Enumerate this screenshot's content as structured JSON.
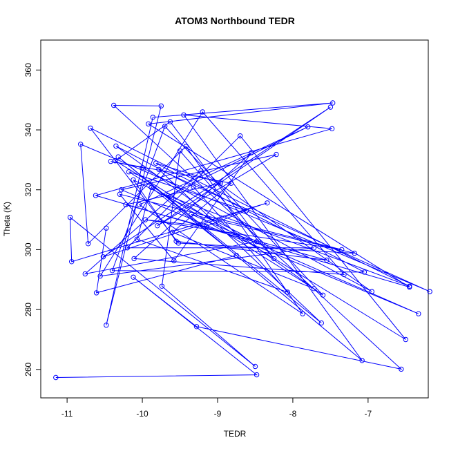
{
  "chart_data": {
    "type": "line",
    "title": "ATOM3 Northbound TEDR",
    "xlabel": "TEDR",
    "ylabel": "Theta (K)",
    "xlim": [
      -11.35,
      -6.2
    ],
    "ylim": [
      250.5,
      370
    ],
    "xticks": [
      -11,
      -10,
      -9,
      -8,
      -7
    ],
    "yticks": [
      260,
      280,
      300,
      320,
      340,
      360
    ],
    "grid": false,
    "series": [
      {
        "color": "#0000ff",
        "marker": "open-circle",
        "points": [
          [
            -11.15,
            257.3
          ],
          [
            -8.48,
            258.2
          ],
          [
            -10.12,
            290.8
          ],
          [
            -9.28,
            274.3
          ],
          [
            -6.56,
            260.1
          ],
          [
            -10.38,
            348.2
          ],
          [
            -9.75,
            348.0
          ],
          [
            -10.48,
            274.8
          ],
          [
            -9.86,
            344.2
          ],
          [
            -7.47,
            349.0
          ],
          [
            -9.92,
            342.0
          ],
          [
            -6.45,
            287.5
          ],
          [
            -10.62,
            318.1
          ],
          [
            -7.48,
            340.4
          ],
          [
            -9.45,
            345.0
          ],
          [
            -7.08,
            263.0
          ],
          [
            -10.32,
            331.0
          ],
          [
            -7.62,
            275.5
          ],
          [
            -9.78,
            326.8
          ],
          [
            -6.18,
            286.0
          ],
          [
            -10.82,
            335.2
          ],
          [
            -10.72,
            302.0
          ],
          [
            -9.42,
            334.5
          ],
          [
            -7.87,
            278.6
          ],
          [
            -10.04,
            315.0
          ],
          [
            -7.8,
            341.0
          ],
          [
            -9.66,
            318.0
          ],
          [
            -6.45,
            287.8
          ],
          [
            -10.69,
            340.6
          ],
          [
            -9.52,
            302.2
          ],
          [
            -7.18,
            298.8
          ],
          [
            -9.35,
            311.8
          ],
          [
            -6.33,
            278.6
          ],
          [
            -10.28,
            320.0
          ],
          [
            -8.22,
            331.8
          ],
          [
            -9.8,
            308.0
          ],
          [
            -7.5,
            347.6
          ],
          [
            -10.52,
            297.6
          ],
          [
            -8.34,
            315.6
          ],
          [
            -10.94,
            296.0
          ],
          [
            -10.96,
            310.8
          ],
          [
            -8.5,
            261.0
          ],
          [
            -9.74,
            287.8
          ],
          [
            -9.5,
            333.0
          ],
          [
            -8.25,
            297.0
          ],
          [
            -9.63,
            342.7
          ],
          [
            -10.36,
            329.7
          ],
          [
            -6.5,
            270.0
          ],
          [
            -8.7,
            338.0
          ],
          [
            -10.2,
            300.6
          ],
          [
            -7.72,
            300.6
          ],
          [
            -10.56,
            291.2
          ],
          [
            -9.2,
            346.0
          ],
          [
            -7.32,
            291.7
          ],
          [
            -10.11,
            297.0
          ],
          [
            -8.55,
            332.4
          ],
          [
            -9.58,
            296.3
          ],
          [
            -10.3,
            318.5
          ],
          [
            -7.35,
            300.0
          ],
          [
            -9.96,
            310.0
          ],
          [
            -9.15,
            307.8
          ],
          [
            -8.62,
            313.0
          ],
          [
            -10.18,
            326.0
          ],
          [
            -7.72,
            287.0
          ],
          [
            -9.6,
            305.8
          ],
          [
            -8.82,
            322.2
          ],
          [
            -10.42,
            329.5
          ],
          [
            -10.0,
            327.4
          ],
          [
            -6.95,
            286.0
          ],
          [
            -9.22,
            326.3
          ],
          [
            -10.76,
            291.9
          ],
          [
            -8.48,
            302.7
          ],
          [
            -10.12,
            323.3
          ],
          [
            -9.55,
            302.8
          ],
          [
            -7.55,
            296.5
          ],
          [
            -10.22,
            315.0
          ],
          [
            -8.96,
            322.2
          ],
          [
            -9.82,
            328.9
          ],
          [
            -7.05,
            292.5
          ],
          [
            -10.4,
            293.0
          ],
          [
            -9.7,
            341.2
          ],
          [
            -7.6,
            284.8
          ],
          [
            -10.35,
            334.6
          ],
          [
            -9.32,
            321.0
          ],
          [
            -8.07,
            285.8
          ],
          [
            -10.07,
            303.5
          ],
          [
            -9.88,
            320.8
          ],
          [
            -8.75,
            298.1
          ],
          [
            -10.61,
            285.6
          ],
          [
            -10.48,
            307.2
          ]
        ]
      }
    ]
  }
}
